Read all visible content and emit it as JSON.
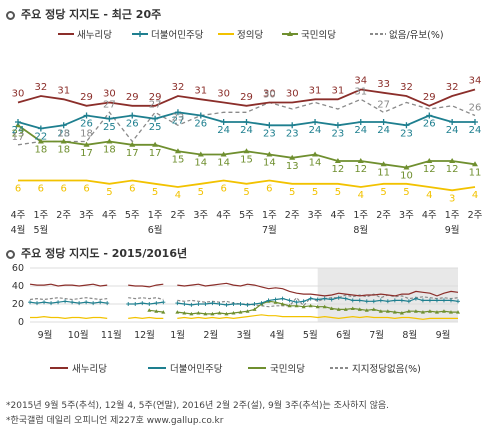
{
  "top_title": "주요 정당 지지도 - 최근 20주",
  "bottom_title": "주요 정당 지지도 - 2015/2016년",
  "colors": {
    "saenuri": "#8b2e2a",
    "minju": "#1e7f8f",
    "jeongui": "#f2c200",
    "gukmin": "#6f8f2f",
    "none": "#8a8a8a",
    "grid": "#dddddd",
    "highlight": "#e8e8e8"
  },
  "notes": [
    "*2015년 9월 5주(추석), 12월 4, 5주(연말), 2016년 2월 2주(설), 9월 3주(추석)는 조사하지 않음.",
    "*한국갤럽 데일리 오피니언 제227호 www.gallup.co.kr"
  ],
  "chart_data": [
    {
      "type": "line",
      "title": "주요 정당 지지도 - 최근 20주",
      "x": [
        "4주",
        "1주",
        "2주",
        "3주",
        "4주",
        "5주",
        "1주",
        "2주",
        "3주",
        "4주",
        "5주",
        "1주",
        "2주",
        "3주",
        "4주",
        "1주",
        "2주",
        "3주",
        "4주",
        "1주",
        "2주"
      ],
      "x_months": [
        {
          "label": "4월",
          "at": 0
        },
        {
          "label": "5월",
          "at": 1
        },
        {
          "label": "6월",
          "at": 6
        },
        {
          "label": "7월",
          "at": 11
        },
        {
          "label": "8월",
          "at": 15
        },
        {
          "label": "9월",
          "at": 19
        }
      ],
      "ylim": [
        0,
        40
      ],
      "series": [
        {
          "name": "새누리당",
          "key": "saenuri",
          "marker": "none",
          "values": [
            30,
            32,
            31,
            29,
            30,
            29,
            29,
            32,
            31,
            30,
            29,
            30,
            30,
            31,
            31,
            34,
            33,
            32,
            29,
            32,
            34
          ]
        },
        {
          "name": "더불어민주당",
          "key": "minju",
          "marker": "plus",
          "values": [
            24,
            22,
            23,
            26,
            25,
            26,
            25,
            27,
            26,
            24,
            24,
            23,
            23,
            24,
            23,
            24,
            24,
            23,
            26,
            24,
            24
          ]
        },
        {
          "name": "정의당",
          "key": "jeongui",
          "marker": "none",
          "values": [
            6,
            6,
            6,
            6,
            5,
            6,
            5,
            4,
            5,
            6,
            5,
            6,
            5,
            5,
            5,
            4,
            5,
            5,
            4,
            3,
            4
          ]
        },
        {
          "name": "국민의당",
          "key": "gukmin",
          "marker": "triangle",
          "values": [
            23,
            18,
            18,
            17,
            18,
            17,
            17,
            15,
            14,
            14,
            15,
            14,
            13,
            14,
            12,
            12,
            11,
            10,
            12,
            12,
            11
          ]
        },
        {
          "name": "없음/유보(%)",
          "key": "none",
          "marker": "none",
          "dash": true,
          "values": [
            17,
            18,
            18,
            18,
            27,
            18,
            27,
            23,
            26,
            27,
            27,
            30,
            28,
            30,
            28,
            31,
            27,
            30,
            28,
            29,
            26
          ]
        }
      ],
      "data_labels": {
        "saenuri": [
          30,
          32,
          31,
          29,
          30,
          29,
          29,
          32,
          31,
          30,
          29,
          30,
          30,
          31,
          31,
          34,
          33,
          32,
          29,
          32,
          34
        ],
        "minju": [
          24,
          22,
          23,
          26,
          25,
          26,
          25,
          27,
          26,
          24,
          24,
          23,
          23,
          24,
          23,
          24,
          24,
          23,
          26,
          24,
          24
        ],
        "jeongui": [
          6,
          6,
          6,
          6,
          5,
          6,
          5,
          4,
          5,
          6,
          5,
          6,
          5,
          5,
          5,
          4,
          5,
          5,
          4,
          3,
          4
        ],
        "gukmin": [
          23,
          18,
          18,
          17,
          18,
          17,
          17,
          15,
          14,
          14,
          15,
          14,
          13,
          14,
          12,
          12,
          11,
          10,
          12,
          12,
          11
        ],
        "none": [
          17,
          null,
          18,
          18,
          27,
          null,
          27,
          23,
          null,
          null,
          null,
          30,
          null,
          null,
          null,
          31,
          27,
          null,
          null,
          null,
          26
        ]
      }
    },
    {
      "type": "line",
      "title": "주요 정당 지지도 - 2015/2016년",
      "ylim": [
        0,
        60
      ],
      "yticks": [
        0,
        20,
        40,
        60
      ],
      "month_labels": [
        "9월",
        "10월",
        "11월",
        "12월",
        "1월",
        "2월",
        "3월",
        "4월",
        "5월",
        "6월",
        "7월",
        "8월",
        "9월"
      ],
      "highlight_from_month_index": 8,
      "series": [
        {
          "name": "새누리당",
          "key": "saenuri",
          "values": [
            42,
            41,
            41,
            42,
            40,
            41,
            41,
            40,
            41,
            42,
            40,
            41,
            null,
            null,
            41,
            40,
            40,
            39,
            41,
            42,
            null,
            41,
            40,
            41,
            42,
            40,
            41,
            42,
            43,
            41,
            40,
            42,
            41,
            39,
            37,
            38,
            37,
            34,
            32,
            31,
            31,
            30,
            29,
            30,
            32,
            31,
            30,
            29,
            30,
            30,
            31,
            30,
            29,
            31,
            31,
            34,
            33,
            32,
            29,
            32,
            34,
            33
          ]
        },
        {
          "name": "더불어민주당",
          "key": "minju",
          "values": [
            22,
            21,
            22,
            21,
            22,
            23,
            22,
            21,
            22,
            21,
            22,
            21,
            null,
            null,
            20,
            20,
            21,
            20,
            21,
            22,
            null,
            21,
            20,
            19,
            20,
            20,
            21,
            20,
            19,
            20,
            20,
            19,
            20,
            21,
            24,
            25,
            26,
            24,
            22,
            23,
            26,
            25,
            26,
            25,
            27,
            26,
            24,
            24,
            23,
            23,
            24,
            23,
            24,
            24,
            23,
            26,
            24,
            24,
            24,
            24,
            24,
            23
          ]
        },
        {
          "name": "정의당",
          "key": "jeongui",
          "values": [
            5,
            5,
            6,
            5,
            5,
            4,
            5,
            5,
            4,
            5,
            5,
            4,
            null,
            null,
            4,
            5,
            4,
            5,
            4,
            4,
            null,
            4,
            5,
            4,
            5,
            4,
            5,
            4,
            5,
            4,
            5,
            6,
            7,
            8,
            7,
            7,
            6,
            6,
            6,
            6,
            6,
            5,
            6,
            5,
            4,
            5,
            6,
            5,
            6,
            5,
            5,
            5,
            4,
            5,
            5,
            4,
            3,
            4,
            4,
            4,
            4,
            4
          ]
        },
        {
          "name": "국민의당",
          "key": "gukmin",
          "values": [
            null,
            null,
            null,
            null,
            null,
            null,
            null,
            null,
            null,
            null,
            null,
            null,
            null,
            null,
            null,
            null,
            null,
            13,
            12,
            11,
            null,
            11,
            10,
            9,
            10,
            9,
            9,
            10,
            9,
            10,
            11,
            12,
            14,
            20,
            23,
            22,
            20,
            18,
            18,
            17,
            18,
            17,
            17,
            15,
            14,
            14,
            15,
            14,
            13,
            14,
            12,
            12,
            11,
            10,
            12,
            12,
            11,
            12,
            11,
            12,
            11,
            11
          ]
        },
        {
          "name": "지지정당없음(%)",
          "key": "none",
          "dash": true,
          "values": [
            25,
            26,
            25,
            26,
            27,
            26,
            25,
            26,
            27,
            26,
            25,
            26,
            null,
            null,
            27,
            26,
            27,
            26,
            27,
            25,
            null,
            24,
            23,
            24,
            23,
            22,
            23,
            22,
            23,
            21,
            20,
            20,
            19,
            18,
            17,
            18,
            18,
            18,
            27,
            18,
            27,
            23,
            26,
            27,
            27,
            30,
            28,
            30,
            28,
            31,
            27,
            30,
            28,
            29,
            26,
            27,
            28,
            27,
            26,
            27,
            26,
            27
          ]
        }
      ]
    }
  ],
  "legend_top": [
    {
      "label": "새누리당",
      "key": "saenuri",
      "marker": "none"
    },
    {
      "label": "더불어민주당",
      "key": "minju",
      "marker": "plus"
    },
    {
      "label": "정의당",
      "key": "jeongui",
      "marker": "none"
    },
    {
      "label": "국민의당",
      "key": "gukmin",
      "marker": "triangle"
    },
    {
      "label": "없음/유보(%)",
      "key": "none",
      "marker": "dash"
    }
  ],
  "legend_bottom": [
    {
      "label": "새누리당",
      "key": "saenuri"
    },
    {
      "label": "더불어민주당",
      "key": "minju"
    },
    {
      "label": "국민의당",
      "key": "gukmin"
    },
    {
      "label": "지지정당없음(%)",
      "key": "none",
      "marker": "dash"
    }
  ]
}
